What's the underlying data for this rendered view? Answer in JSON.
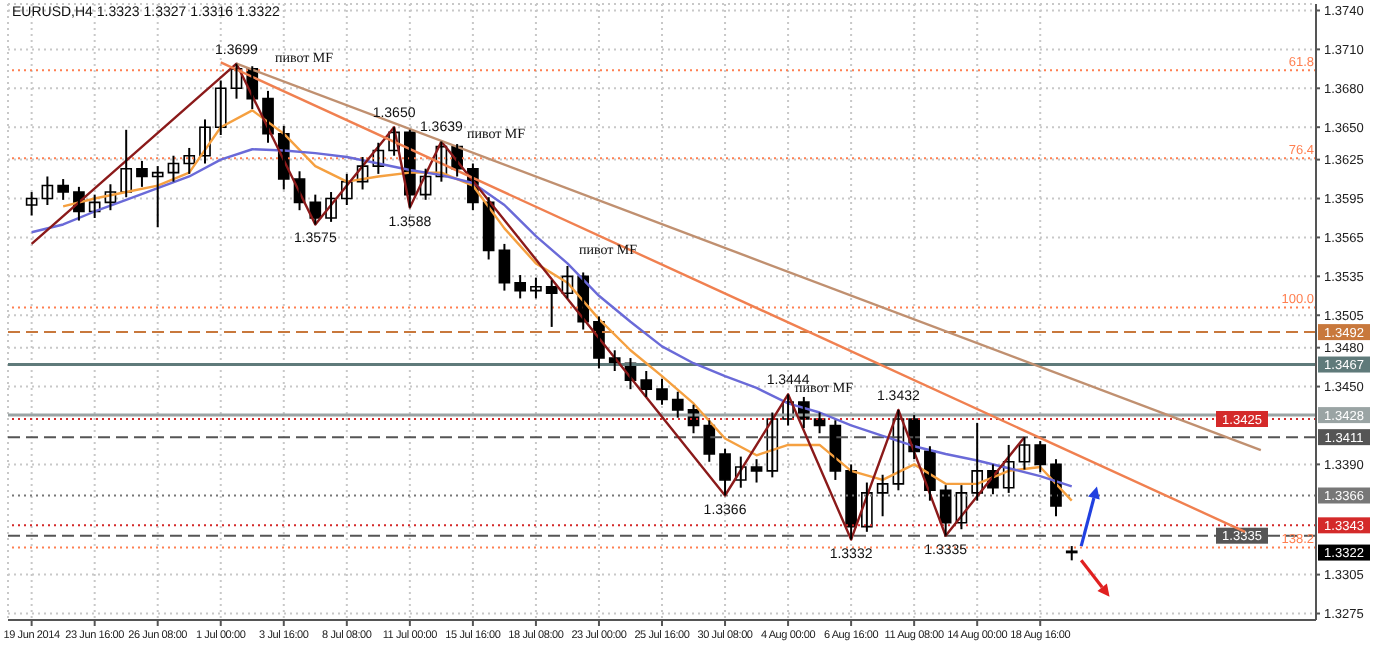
{
  "chart_data": {
    "type": "candlestick",
    "title": "EURUSD,H4  1.3323 1.3327 1.3316 1.3322",
    "categories": [
      null,
      "19 Jun 2014",
      null,
      null,
      null,
      "23 Jun 16:00",
      null,
      null,
      null,
      "26 Jun 08:00",
      null,
      null,
      null,
      "1 Jul 00:00",
      null,
      null,
      null,
      "3 Jul 16:00",
      null,
      null,
      null,
      "8 Jul 08:00",
      null,
      null,
      null,
      "11 Jul 00:00",
      null,
      null,
      null,
      "15 Jul 16:00",
      null,
      null,
      null,
      "18 Jul 08:00",
      null,
      null,
      null,
      "23 Jul 00:00",
      null,
      null,
      null,
      "25 Jul 16:00",
      null,
      null,
      null,
      "30 Jul 08:00",
      null,
      null,
      null,
      "4 Aug 00:00",
      null,
      null,
      null,
      "6 Aug 16:00",
      null,
      null,
      null,
      "11 Aug 08:00",
      null,
      null,
      null,
      "14 Aug 00:00",
      null,
      null,
      null,
      "18 Aug 16:00",
      null,
      null,
      null,
      null,
      null,
      null,
      null,
      null,
      null,
      null,
      null,
      null,
      null,
      null,
      null,
      null,
      null
    ],
    "ohlc": [
      null,
      [
        1.359,
        1.36,
        1.3582,
        1.3595
      ],
      [
        1.3595,
        1.3612,
        1.359,
        1.3605
      ],
      [
        1.3605,
        1.361,
        1.3594,
        1.36
      ],
      [
        1.36,
        1.3604,
        1.3578,
        1.3585
      ],
      [
        1.3585,
        1.3598,
        1.358,
        1.3592
      ],
      [
        1.3592,
        1.3606,
        1.3586,
        1.36
      ],
      [
        1.36,
        1.3648,
        1.3596,
        1.3618
      ],
      [
        1.3618,
        1.3624,
        1.3604,
        1.3612
      ],
      [
        1.3612,
        1.362,
        1.3573,
        1.3615
      ],
      [
        1.3615,
        1.3628,
        1.3608,
        1.3622
      ],
      [
        1.3622,
        1.3634,
        1.3614,
        1.3628
      ],
      [
        1.3628,
        1.3656,
        1.3622,
        1.365
      ],
      [
        1.365,
        1.3686,
        1.3644,
        1.368
      ],
      [
        1.368,
        1.3699,
        1.3672,
        1.3695
      ],
      [
        1.3695,
        1.3697,
        1.3664,
        1.3672
      ],
      [
        1.3672,
        1.3678,
        1.3638,
        1.3645
      ],
      [
        1.3645,
        1.3651,
        1.3602,
        1.361
      ],
      [
        1.361,
        1.3616,
        1.3586,
        1.3592
      ],
      [
        1.3592,
        1.3598,
        1.3575,
        1.358
      ],
      [
        1.358,
        1.36,
        1.3577,
        1.3595
      ],
      [
        1.3595,
        1.3614,
        1.359,
        1.3608
      ],
      [
        1.3608,
        1.3627,
        1.3602,
        1.362
      ],
      [
        1.362,
        1.3638,
        1.3614,
        1.3632
      ],
      [
        1.3632,
        1.365,
        1.3628,
        1.3646
      ],
      [
        1.3646,
        1.3648,
        1.3588,
        1.3598
      ],
      [
        1.3598,
        1.3618,
        1.3594,
        1.3612
      ],
      [
        1.3612,
        1.3639,
        1.3608,
        1.3635
      ],
      [
        1.3635,
        1.3637,
        1.3612,
        1.3618
      ],
      [
        1.3618,
        1.3622,
        1.3586,
        1.3592
      ],
      [
        1.3592,
        1.3596,
        1.3548,
        1.3555
      ],
      [
        1.3555,
        1.356,
        1.3524,
        1.353
      ],
      [
        1.353,
        1.3536,
        1.3518,
        1.3524
      ],
      [
        1.3524,
        1.3534,
        1.3518,
        1.3527
      ],
      [
        1.3527,
        1.3532,
        1.3496,
        1.3522
      ],
      [
        1.3522,
        1.3543,
        1.3518,
        1.3535
      ],
      [
        1.3535,
        1.3538,
        1.3494,
        1.35
      ],
      [
        1.35,
        1.3504,
        1.3464,
        1.3472
      ],
      [
        1.3472,
        1.3478,
        1.3462,
        1.3468
      ],
      [
        1.3468,
        1.3472,
        1.3448,
        1.3455
      ],
      [
        1.3455,
        1.3462,
        1.3442,
        1.3448
      ],
      [
        1.3448,
        1.3456,
        1.3436,
        1.344
      ],
      [
        1.344,
        1.3446,
        1.3426,
        1.3432
      ],
      [
        1.3432,
        1.3436,
        1.3414,
        1.342
      ],
      [
        1.342,
        1.3424,
        1.3392,
        1.3398
      ],
      [
        1.3398,
        1.3402,
        1.3366,
        1.3378
      ],
      [
        1.3378,
        1.3396,
        1.3372,
        1.3388
      ],
      [
        1.3388,
        1.3394,
        1.3376,
        1.3385
      ],
      [
        1.3385,
        1.343,
        1.338,
        1.3425
      ],
      [
        1.3425,
        1.3444,
        1.342,
        1.3438
      ],
      [
        1.3438,
        1.3442,
        1.3418,
        1.3425
      ],
      [
        1.3425,
        1.343,
        1.3414,
        1.342
      ],
      [
        1.342,
        1.3424,
        1.3378,
        1.3385
      ],
      [
        1.3385,
        1.339,
        1.3332,
        1.3342
      ],
      [
        1.3342,
        1.3376,
        1.3338,
        1.3368
      ],
      [
        1.3368,
        1.3382,
        1.335,
        1.3375
      ],
      [
        1.3375,
        1.3432,
        1.337,
        1.3425
      ],
      [
        1.3425,
        1.3428,
        1.3394,
        1.34
      ],
      [
        1.34,
        1.3404,
        1.3362,
        1.337
      ],
      [
        1.337,
        1.3374,
        1.3335,
        1.3345
      ],
      [
        1.3345,
        1.3374,
        1.334,
        1.3368
      ],
      [
        1.3368,
        1.3422,
        1.3362,
        1.3385
      ],
      [
        1.3385,
        1.339,
        1.3367,
        1.3372
      ],
      [
        1.3372,
        1.3405,
        1.3368,
        1.3392
      ],
      [
        1.3392,
        1.3411,
        1.3386,
        1.3405
      ],
      [
        1.3405,
        1.3408,
        1.3384,
        1.339
      ],
      [
        1.339,
        1.3394,
        1.335,
        1.3358
      ],
      [
        1.3323,
        1.3327,
        1.3316,
        1.3322
      ],
      null,
      null,
      null,
      null,
      null,
      null,
      null,
      null,
      null,
      null,
      null,
      null,
      null,
      null,
      null
    ],
    "series": [
      {
        "type": "line",
        "color": "#f5a040",
        "values": [
          null,
          null,
          null,
          1.3589,
          null,
          1.3595,
          null,
          1.36,
          null,
          1.3605,
          null,
          1.3615,
          null,
          1.365,
          null,
          1.3663,
          null,
          1.3645,
          null,
          1.362,
          null,
          1.3608,
          null,
          1.3612,
          null,
          1.3615,
          null,
          1.3615,
          null,
          1.3605,
          null,
          1.3572,
          null,
          1.3545,
          null,
          1.353,
          null,
          1.3502,
          null,
          1.3478,
          null,
          1.3458,
          null,
          1.3437,
          null,
          1.341,
          null,
          1.3397,
          null,
          1.3405,
          null,
          1.3405,
          null,
          1.3385,
          null,
          1.3378,
          null,
          1.339,
          null,
          1.3375,
          null,
          1.3375,
          null,
          1.3385,
          null,
          1.3388,
          null,
          1.3362,
          null,
          null,
          null,
          null,
          null,
          null,
          null,
          null,
          null,
          null,
          null,
          null,
          null,
          null,
          null
        ]
      },
      {
        "type": "line",
        "color": "#6a6ad8",
        "values": [
          null,
          1.3569,
          null,
          1.3575,
          null,
          1.3585,
          null,
          1.3594,
          null,
          1.3603,
          null,
          1.3612,
          null,
          1.3625,
          null,
          1.3633,
          null,
          1.3632,
          null,
          1.363,
          null,
          1.3627,
          null,
          1.3622,
          null,
          1.3617,
          null,
          1.3613,
          null,
          1.3607,
          null,
          1.359,
          null,
          1.3566,
          null,
          1.3545,
          null,
          1.352,
          null,
          1.35,
          null,
          1.3481,
          null,
          1.3468,
          null,
          1.3458,
          null,
          1.3449,
          null,
          1.3437,
          null,
          1.343,
          null,
          1.342,
          null,
          1.3412,
          null,
          1.3404,
          null,
          1.3398,
          null,
          1.3393,
          null,
          1.3387,
          null,
          1.3381,
          null,
          1.3373,
          null,
          null,
          null,
          null,
          null,
          null,
          null,
          null,
          null,
          null,
          null,
          null,
          null,
          null,
          null
        ]
      },
      {
        "type": "line",
        "color": "#8b1a1a",
        "values": [
          null,
          1.356,
          null,
          null,
          null,
          null,
          null,
          null,
          null,
          null,
          null,
          null,
          null,
          null,
          1.3699,
          null,
          null,
          null,
          null,
          1.3575,
          null,
          null,
          null,
          null,
          1.365,
          1.3588,
          null,
          1.3639,
          null,
          null,
          null,
          null,
          null,
          null,
          null,
          null,
          null,
          null,
          null,
          null,
          null,
          null,
          null,
          null,
          null,
          1.3366,
          null,
          null,
          null,
          1.3444,
          null,
          null,
          null,
          1.3332,
          null,
          null,
          1.3432,
          null,
          null,
          1.3335,
          null,
          null,
          null,
          null,
          1.3411,
          null,
          null,
          null,
          null,
          null,
          null,
          null,
          null,
          null,
          null,
          null,
          null,
          null,
          null,
          null,
          null,
          null,
          null
        ]
      },
      {
        "type": "line",
        "color": "#f08050",
        "values": [
          null,
          null,
          null,
          null,
          null,
          null,
          null,
          null,
          null,
          null,
          null,
          null,
          null,
          1.37,
          null,
          null,
          null,
          null,
          null,
          null,
          null,
          null,
          null,
          null,
          null,
          null,
          null,
          null,
          null,
          null,
          null,
          null,
          null,
          null,
          null,
          null,
          null,
          null,
          null,
          null,
          null,
          null,
          null,
          null,
          null,
          null,
          null,
          null,
          null,
          null,
          null,
          null,
          null,
          null,
          null,
          null,
          null,
          null,
          null,
          null,
          null,
          null,
          null,
          null,
          null,
          null,
          null,
          null,
          null,
          null,
          null,
          null,
          null,
          null,
          null,
          null,
          null,
          null,
          1.3338,
          null,
          null,
          null,
          null
        ]
      },
      {
        "type": "line",
        "color": "#c09070",
        "values": [
          null,
          null,
          null,
          null,
          null,
          null,
          null,
          null,
          null,
          null,
          null,
          null,
          null,
          null,
          1.3699,
          null,
          null,
          null,
          null,
          null,
          null,
          null,
          null,
          null,
          null,
          null,
          null,
          null,
          null,
          null,
          null,
          null,
          null,
          null,
          null,
          null,
          null,
          null,
          null,
          null,
          null,
          null,
          null,
          null,
          null,
          null,
          null,
          null,
          null,
          null,
          null,
          null,
          null,
          null,
          null,
          null,
          null,
          null,
          null,
          null,
          null,
          null,
          null,
          null,
          null,
          null,
          null,
          null,
          null,
          null,
          null,
          null,
          null,
          null,
          null,
          null,
          null,
          null,
          null,
          1.3401,
          null,
          null,
          null
        ]
      }
    ],
    "ylim": [
      1.327,
      1.3745
    ],
    "yticks": [
      {
        "value": 1.374,
        "label": "1.3740"
      },
      {
        "value": 1.371,
        "label": "1.3710"
      },
      {
        "value": 1.368,
        "label": "1.3680"
      },
      {
        "value": 1.365,
        "label": "1.3650"
      },
      {
        "value": 1.3625,
        "label": "1.3625"
      },
      {
        "value": 1.3595,
        "label": "1.3595"
      },
      {
        "value": 1.3565,
        "label": "1.3565"
      },
      {
        "value": 1.3535,
        "label": "1.3535"
      },
      {
        "value": 1.3505,
        "label": "1.3505"
      },
      {
        "value": 1.348,
        "label": "1.3480"
      },
      {
        "value": 1.345,
        "label": "1.3450"
      },
      {
        "value": 1.339,
        "label": "1.3390"
      },
      {
        "value": 1.3305,
        "label": "1.3305"
      },
      {
        "value": 1.3275,
        "label": "1.3275"
      }
    ],
    "ref_lines": [
      {
        "axis": "y",
        "value": 1.3694,
        "color": "#ff7f50",
        "line_style": "dotted"
      },
      {
        "axis": "y",
        "value": 1.3626,
        "color": "#ff7f50",
        "line_style": "dotted"
      },
      {
        "axis": "y",
        "value": 1.3511,
        "color": "#ff7f50",
        "line_style": "dotted"
      },
      {
        "axis": "y",
        "value": 1.3326,
        "color": "#ff7f50",
        "line_style": "dotted"
      },
      {
        "axis": "y",
        "value": 1.3492,
        "label": "1.3492",
        "color": "#c8783c",
        "line_style": "dashed"
      },
      {
        "axis": "y",
        "value": 1.3467,
        "label": "1.3467",
        "color": "#5f7a7a",
        "line_style": "solid"
      },
      {
        "axis": "y",
        "value": 1.3428,
        "label": "1.3428",
        "color": "#9aa4a4",
        "line_style": "solid"
      },
      {
        "axis": "y",
        "value": 1.3425,
        "label": "1.3425",
        "color": "#d42a2a",
        "line_style": "dotted"
      },
      {
        "axis": "y",
        "value": 1.3411,
        "label": "1.3411",
        "color": "#555555",
        "line_style": "dashed"
      },
      {
        "axis": "y",
        "value": 1.3366,
        "label": "1.3366",
        "color": "#777777",
        "line_style": "dotted"
      },
      {
        "axis": "y",
        "value": 1.3343,
        "label": "1.3343",
        "color": "#d42a2a",
        "line_style": "dotted"
      },
      {
        "axis": "y",
        "value": 1.3335,
        "label": "1.3335",
        "color": "#555555",
        "line_style": "dashed"
      }
    ],
    "annotations": [
      {
        "text": "1.3699",
        "y": 1.3699
      },
      {
        "text": "1.3575",
        "y": 1.3575
      },
      {
        "text": "1.3650",
        "y": 1.365
      },
      {
        "text": "1.3588",
        "y": 1.3588
      },
      {
        "text": "1.3639",
        "y": 1.3639
      },
      {
        "text": "1.3366",
        "y": 1.3366
      },
      {
        "text": "1.3444",
        "y": 1.3444
      },
      {
        "text": "1.3332",
        "y": 1.3332
      },
      {
        "text": "1.3432",
        "y": 1.3432
      },
      {
        "text": "1.3335",
        "y": 1.3335
      },
      {
        "text": "61.8",
        "y": 1.3694
      },
      {
        "text": "76.4",
        "y": 1.3626
      },
      {
        "text": "100.0",
        "y": 1.3511
      },
      {
        "text": "138.2",
        "y": 1.3326
      },
      "пивот MF",
      "пивот MF",
      "пивот MF",
      "пивот MF",
      "1.3322"
    ],
    "grid": true
  }
}
